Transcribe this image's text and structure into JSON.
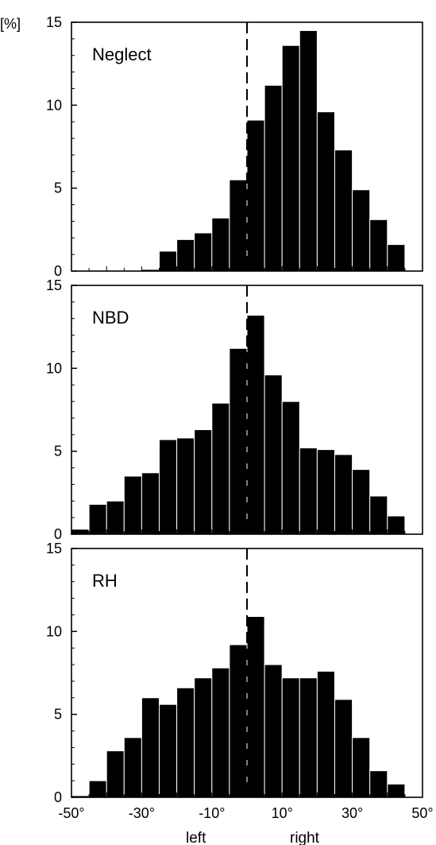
{
  "chart_data": {
    "type": "bar",
    "y_unit_label": "[%]",
    "x_range": [
      -50,
      50
    ],
    "bin_width": 5,
    "x_tick_values": [
      -50,
      -30,
      -10,
      10,
      30,
      50
    ],
    "x_tick_labels": [
      "-50°",
      "-30°",
      "-10°",
      "10°",
      "30°",
      "50°"
    ],
    "y_tick_labels": [
      "0",
      "5",
      "10",
      "15"
    ],
    "y_tick_values": [
      0,
      5,
      10,
      15
    ],
    "ylim": [
      0,
      15
    ],
    "bar_color": "#000000",
    "reference_line": {
      "x": 0,
      "style": "dashed"
    },
    "xlabel_left": "left",
    "xlabel_right": "right",
    "bin_starts": [
      -50,
      -45,
      -40,
      -35,
      -30,
      -25,
      -20,
      -15,
      -10,
      -5,
      0,
      5,
      10,
      15,
      20,
      25,
      30,
      35,
      40,
      45
    ],
    "panels": [
      {
        "label": "Neglect",
        "values": [
          0,
          0,
          0,
          0,
          0.1,
          1.2,
          1.9,
          2.3,
          3.2,
          5.5,
          9.1,
          11.2,
          13.6,
          14.5,
          9.6,
          7.3,
          4.9,
          3.1,
          1.6,
          0
        ]
      },
      {
        "label": "NBD",
        "values": [
          0.3,
          1.8,
          2.0,
          3.5,
          3.7,
          5.7,
          5.8,
          6.3,
          7.9,
          11.2,
          13.2,
          9.6,
          8.0,
          5.2,
          5.1,
          4.8,
          3.9,
          2.3,
          1.1,
          0
        ]
      },
      {
        "label": "RH",
        "values": [
          0.1,
          1.0,
          2.8,
          3.6,
          6.0,
          5.6,
          6.6,
          7.2,
          7.8,
          9.2,
          10.9,
          8.0,
          7.2,
          7.2,
          7.6,
          5.9,
          3.6,
          1.6,
          0.8,
          0
        ]
      }
    ]
  }
}
